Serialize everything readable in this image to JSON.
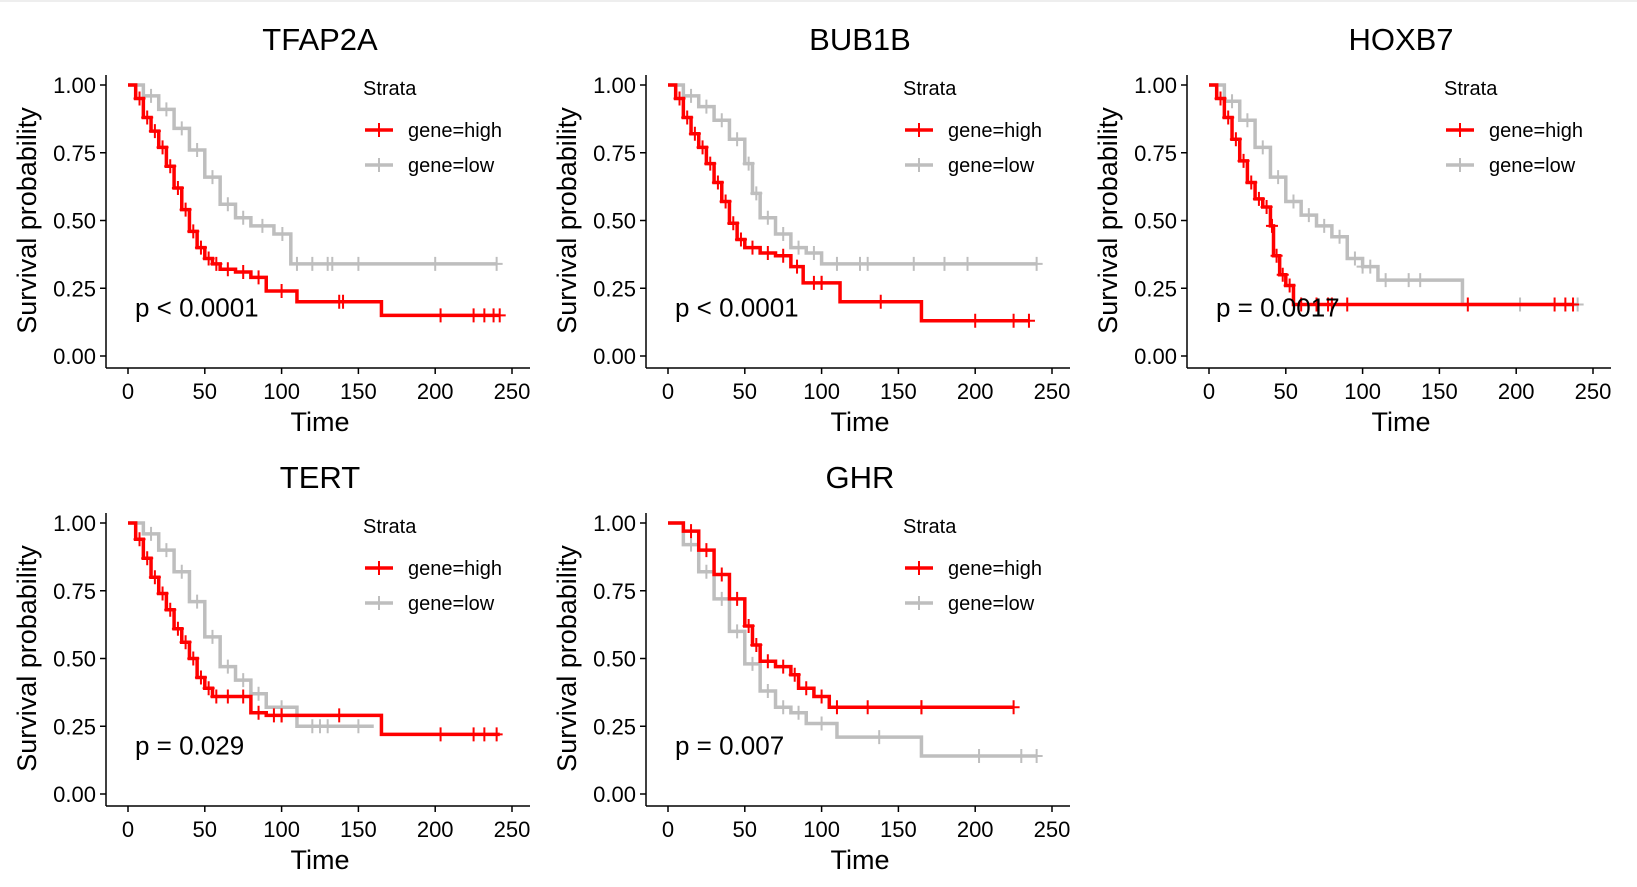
{
  "colors": {
    "high": "#ff0000",
    "low": "#bebebe",
    "axis": "#000000"
  },
  "chart_data": [
    {
      "type": "line",
      "title": "TFAP2A",
      "xlabel": "Time",
      "ylabel": "Survival probability",
      "xlim": [
        0,
        250
      ],
      "ylim": [
        0,
        1
      ],
      "xticks": [
        "0",
        "50",
        "100",
        "150",
        "200",
        "250"
      ],
      "yticks": [
        "0.00",
        "0.25",
        "0.50",
        "0.75",
        "1.00"
      ],
      "legend_title": "Strata",
      "legend_position": "top-right",
      "pvalue": "p < 0.0001",
      "series": [
        {
          "name": "gene=high",
          "color": "#ff0000",
          "x": [
            0,
            5,
            10,
            15,
            20,
            25,
            30,
            35,
            40,
            45,
            50,
            55,
            60,
            70,
            80,
            90,
            110,
            165,
            242
          ],
          "y": [
            1.0,
            0.95,
            0.88,
            0.83,
            0.77,
            0.7,
            0.62,
            0.54,
            0.46,
            0.4,
            0.36,
            0.34,
            0.32,
            0.31,
            0.29,
            0.24,
            0.2,
            0.15,
            0.15
          ],
          "censor": [
            140,
            225,
            232,
            238,
            242
          ]
        },
        {
          "name": "gene=low",
          "color": "#bebebe",
          "x": [
            0,
            10,
            20,
            30,
            40,
            50,
            60,
            70,
            80,
            95,
            106,
            160,
            240
          ],
          "y": [
            1.0,
            0.96,
            0.91,
            0.84,
            0.76,
            0.66,
            0.56,
            0.51,
            0.48,
            0.45,
            0.34,
            0.34,
            0.34
          ],
          "censor": [
            110,
            120,
            130,
            150,
            240
          ]
        }
      ]
    },
    {
      "type": "line",
      "title": "BUB1B",
      "xlabel": "Time",
      "ylabel": "Survival probability",
      "xlim": [
        0,
        250
      ],
      "ylim": [
        0,
        1
      ],
      "xticks": [
        "0",
        "50",
        "100",
        "150",
        "200",
        "250"
      ],
      "yticks": [
        "0.00",
        "0.25",
        "0.50",
        "0.75",
        "1.00"
      ],
      "legend_title": "Strata",
      "legend_position": "top-right",
      "pvalue": "p < 0.0001",
      "series": [
        {
          "name": "gene=high",
          "color": "#ff0000",
          "x": [
            0,
            5,
            10,
            15,
            20,
            25,
            30,
            35,
            40,
            45,
            50,
            60,
            70,
            80,
            88,
            112,
            165,
            235
          ],
          "y": [
            1.0,
            0.95,
            0.88,
            0.82,
            0.77,
            0.71,
            0.64,
            0.57,
            0.49,
            0.43,
            0.4,
            0.38,
            0.37,
            0.33,
            0.27,
            0.2,
            0.13,
            0.13
          ],
          "censor": [
            95,
            100,
            225,
            235
          ]
        },
        {
          "name": "gene=low",
          "color": "#bebebe",
          "x": [
            0,
            10,
            20,
            30,
            40,
            50,
            55,
            60,
            70,
            80,
            90,
            100,
            150,
            240
          ],
          "y": [
            1.0,
            0.96,
            0.92,
            0.87,
            0.8,
            0.71,
            0.6,
            0.51,
            0.45,
            0.4,
            0.38,
            0.34,
            0.34,
            0.34
          ],
          "censor": [
            110,
            130,
            160,
            180,
            240
          ]
        }
      ]
    },
    {
      "type": "line",
      "title": "HOXB7",
      "xlabel": "Time",
      "ylabel": "Survival probability",
      "xlim": [
        0,
        250
      ],
      "ylim": [
        0,
        1
      ],
      "xticks": [
        "0",
        "50",
        "100",
        "150",
        "200",
        "250"
      ],
      "yticks": [
        "0.00",
        "0.25",
        "0.50",
        "0.75",
        "1.00"
      ],
      "legend_title": "Strata",
      "legend_position": "top-right",
      "pvalue": "p = 0.0017",
      "series": [
        {
          "name": "gene=high",
          "color": "#ff0000",
          "x": [
            0,
            5,
            10,
            15,
            20,
            25,
            30,
            35,
            40,
            42,
            46,
            50,
            55,
            100,
            237
          ],
          "y": [
            1.0,
            0.95,
            0.88,
            0.8,
            0.72,
            0.64,
            0.58,
            0.55,
            0.48,
            0.37,
            0.3,
            0.26,
            0.19,
            0.19,
            0.19
          ],
          "censor": [
            60,
            70,
            80,
            90,
            225,
            232,
            237
          ]
        },
        {
          "name": "gene=low",
          "color": "#bebebe",
          "x": [
            0,
            10,
            20,
            30,
            40,
            50,
            60,
            70,
            80,
            90,
            100,
            110,
            165,
            240
          ],
          "y": [
            1.0,
            0.94,
            0.87,
            0.77,
            0.66,
            0.57,
            0.52,
            0.48,
            0.44,
            0.36,
            0.33,
            0.28,
            0.19,
            0.19
          ],
          "censor": [
            100,
            115,
            130,
            240
          ]
        }
      ]
    },
    {
      "type": "line",
      "title": "TERT",
      "xlabel": "Time",
      "ylabel": "Survival probability",
      "xlim": [
        0,
        250
      ],
      "ylim": [
        0,
        1
      ],
      "xticks": [
        "0",
        "50",
        "100",
        "150",
        "200",
        "250"
      ],
      "yticks": [
        "0.00",
        "0.25",
        "0.50",
        "0.75",
        "1.00"
      ],
      "legend_title": "Strata",
      "legend_position": "top-right",
      "pvalue": "p = 0.029",
      "series": [
        {
          "name": "gene=high",
          "color": "#ff0000",
          "x": [
            0,
            5,
            10,
            15,
            20,
            25,
            30,
            35,
            40,
            45,
            50,
            55,
            60,
            70,
            80,
            90,
            110,
            165,
            242
          ],
          "y": [
            1.0,
            0.94,
            0.87,
            0.8,
            0.74,
            0.68,
            0.61,
            0.56,
            0.5,
            0.43,
            0.39,
            0.36,
            0.36,
            0.36,
            0.3,
            0.29,
            0.29,
            0.22,
            0.22
          ],
          "censor": [
            95,
            100,
            225,
            232,
            240
          ]
        },
        {
          "name": "gene=low",
          "color": "#bebebe",
          "x": [
            0,
            10,
            20,
            30,
            40,
            50,
            60,
            70,
            80,
            90,
            110,
            140,
            160
          ],
          "y": [
            1.0,
            0.96,
            0.9,
            0.82,
            0.71,
            0.58,
            0.47,
            0.42,
            0.37,
            0.32,
            0.25,
            0.25,
            0.25
          ],
          "censor": [
            120,
            130
          ]
        }
      ]
    },
    {
      "type": "line",
      "title": "GHR",
      "xlabel": "Time",
      "ylabel": "Survival probability",
      "xlim": [
        0,
        250
      ],
      "ylim": [
        0,
        1
      ],
      "xticks": [
        "0",
        "50",
        "100",
        "150",
        "200",
        "250"
      ],
      "yticks": [
        "0.00",
        "0.25",
        "0.50",
        "0.75",
        "1.00"
      ],
      "legend_title": "Strata",
      "legend_position": "top-right",
      "pvalue": "p = 0.007",
      "series": [
        {
          "name": "gene=high",
          "color": "#ff0000",
          "x": [
            0,
            10,
            20,
            30,
            40,
            50,
            55,
            60,
            70,
            80,
            85,
            95,
            105,
            225
          ],
          "y": [
            1.0,
            0.97,
            0.9,
            0.81,
            0.72,
            0.62,
            0.55,
            0.49,
            0.47,
            0.44,
            0.39,
            0.36,
            0.32,
            0.32
          ],
          "censor": [
            110,
            130,
            165,
            225
          ]
        },
        {
          "name": "gene=low",
          "color": "#bebebe",
          "x": [
            0,
            10,
            20,
            30,
            40,
            50,
            60,
            70,
            80,
            90,
            110,
            165,
            240
          ],
          "y": [
            1.0,
            0.92,
            0.82,
            0.72,
            0.6,
            0.48,
            0.38,
            0.32,
            0.3,
            0.26,
            0.21,
            0.14,
            0.14
          ],
          "censor": [
            230,
            240
          ]
        }
      ]
    }
  ]
}
